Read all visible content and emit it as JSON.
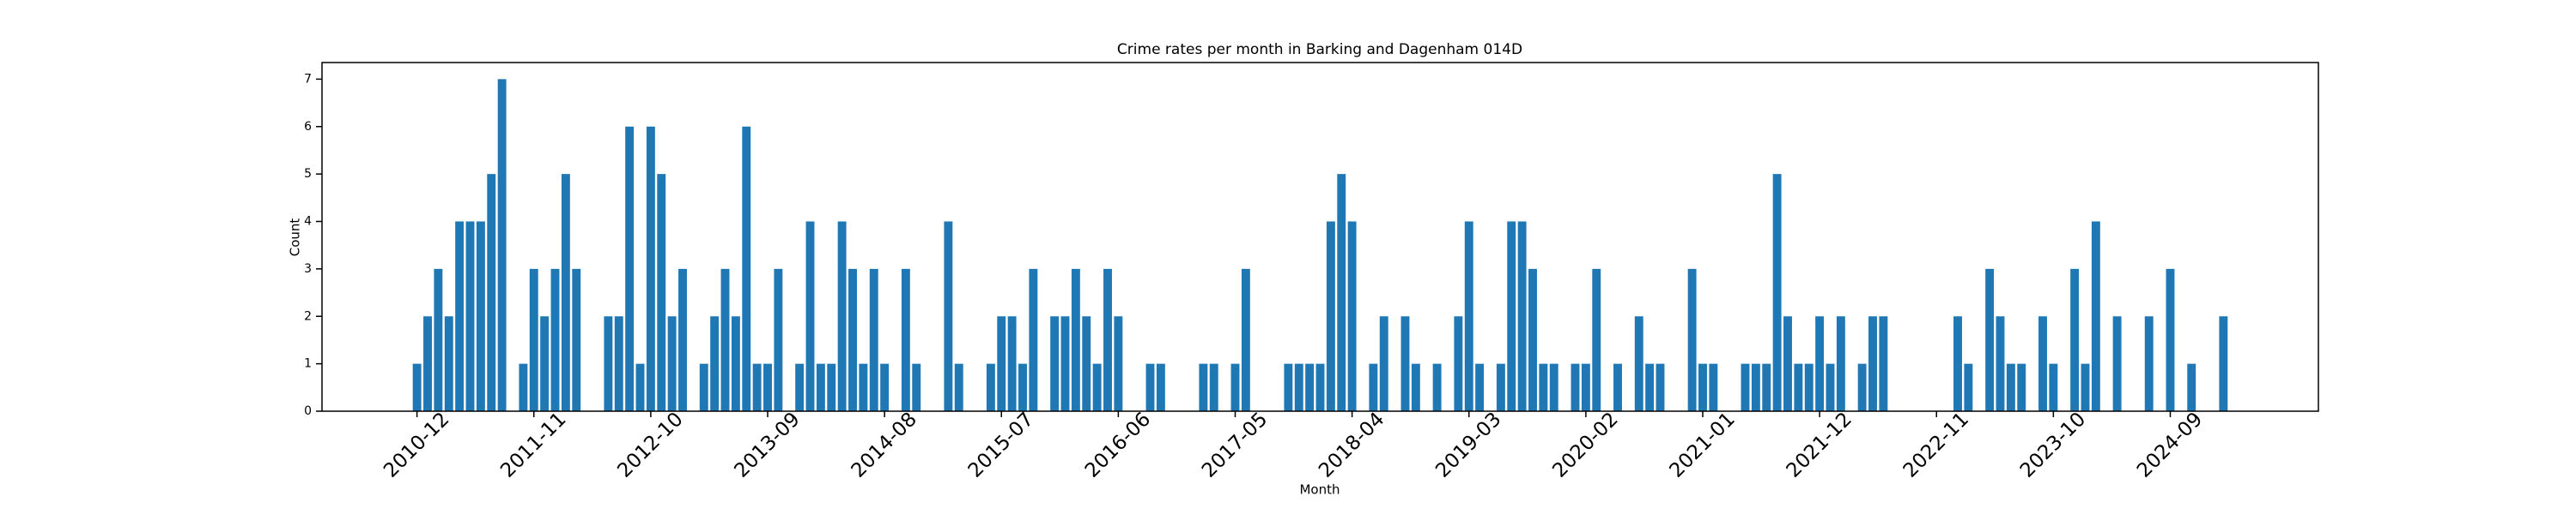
{
  "chart_data": {
    "type": "bar",
    "title": "Crime rates per month in Barking and Dagenham 014D",
    "x_label": "Month",
    "y_label": "Count",
    "color": "#1f77b4",
    "categories": [
      "2010-12",
      null,
      null,
      null,
      null,
      null,
      null,
      null,
      null,
      null,
      null,
      "2011-11",
      null,
      null,
      null,
      null,
      null,
      null,
      null,
      null,
      null,
      null,
      "2012-10",
      null,
      null,
      null,
      null,
      null,
      null,
      null,
      null,
      null,
      null,
      "2013-09",
      null,
      null,
      null,
      null,
      null,
      null,
      null,
      null,
      null,
      null,
      "2014-08",
      null,
      null,
      null,
      null,
      null,
      null,
      null,
      null,
      null,
      null,
      "2015-07",
      null,
      null,
      null,
      null,
      null,
      null,
      null,
      null,
      null,
      null,
      "2016-06",
      null,
      null,
      null,
      null,
      null,
      null,
      null,
      null,
      null,
      null,
      "2017-05",
      null,
      null,
      null,
      null,
      null,
      null,
      null,
      null,
      null,
      null,
      "2018-04",
      null,
      null,
      null,
      null,
      null,
      null,
      null,
      null,
      null,
      null,
      "2019-03",
      null,
      null,
      null,
      null,
      null,
      null,
      null,
      null,
      null,
      null,
      "2020-02",
      null,
      null,
      null,
      null,
      null,
      null,
      null,
      null,
      null,
      null,
      "2021-01",
      null,
      null,
      null,
      null,
      null,
      null,
      null,
      null,
      null,
      null,
      "2021-12",
      null,
      null,
      null,
      null,
      null,
      null,
      null,
      null,
      null,
      null,
      "2022-11",
      null,
      null,
      null,
      null,
      null,
      null,
      null,
      null,
      null,
      null,
      "2023-10",
      null,
      null,
      null,
      null,
      null,
      null,
      null,
      null,
      null,
      null,
      "2024-09",
      null,
      null,
      null,
      null,
      null
    ],
    "values": [
      1,
      2,
      3,
      2,
      4,
      4,
      4,
      5,
      7,
      0,
      1,
      3,
      2,
      3,
      5,
      3,
      0,
      0,
      2,
      2,
      6,
      1,
      6,
      5,
      2,
      3,
      0,
      1,
      2,
      3,
      2,
      6,
      1,
      1,
      3,
      0,
      1,
      4,
      1,
      1,
      4,
      3,
      1,
      3,
      1,
      0,
      3,
      1,
      0,
      0,
      4,
      1,
      0,
      0,
      1,
      2,
      2,
      1,
      3,
      0,
      2,
      2,
      3,
      2,
      1,
      3,
      2,
      0,
      0,
      1,
      1,
      0,
      0,
      0,
      1,
      1,
      0,
      1,
      3,
      0,
      0,
      0,
      1,
      1,
      1,
      1,
      4,
      5,
      4,
      0,
      1,
      2,
      0,
      2,
      1,
      0,
      1,
      0,
      2,
      4,
      1,
      0,
      1,
      4,
      4,
      3,
      1,
      1,
      0,
      1,
      1,
      3,
      0,
      1,
      0,
      2,
      1,
      1,
      0,
      0,
      3,
      1,
      1,
      0,
      0,
      1,
      1,
      1,
      5,
      2,
      1,
      1,
      2,
      1,
      2,
      0,
      1,
      2,
      2,
      0,
      0,
      0,
      0,
      0,
      0,
      2,
      1,
      0,
      3,
      2,
      1,
      1,
      0,
      2,
      1,
      0,
      3,
      1,
      4,
      0,
      2,
      0,
      0,
      2,
      0,
      3,
      0,
      1,
      0,
      0,
      2
    ],
    "ylim": [
      0,
      7.35
    ],
    "yticks": [
      0,
      1,
      2,
      3,
      4,
      5,
      6,
      7
    ]
  }
}
